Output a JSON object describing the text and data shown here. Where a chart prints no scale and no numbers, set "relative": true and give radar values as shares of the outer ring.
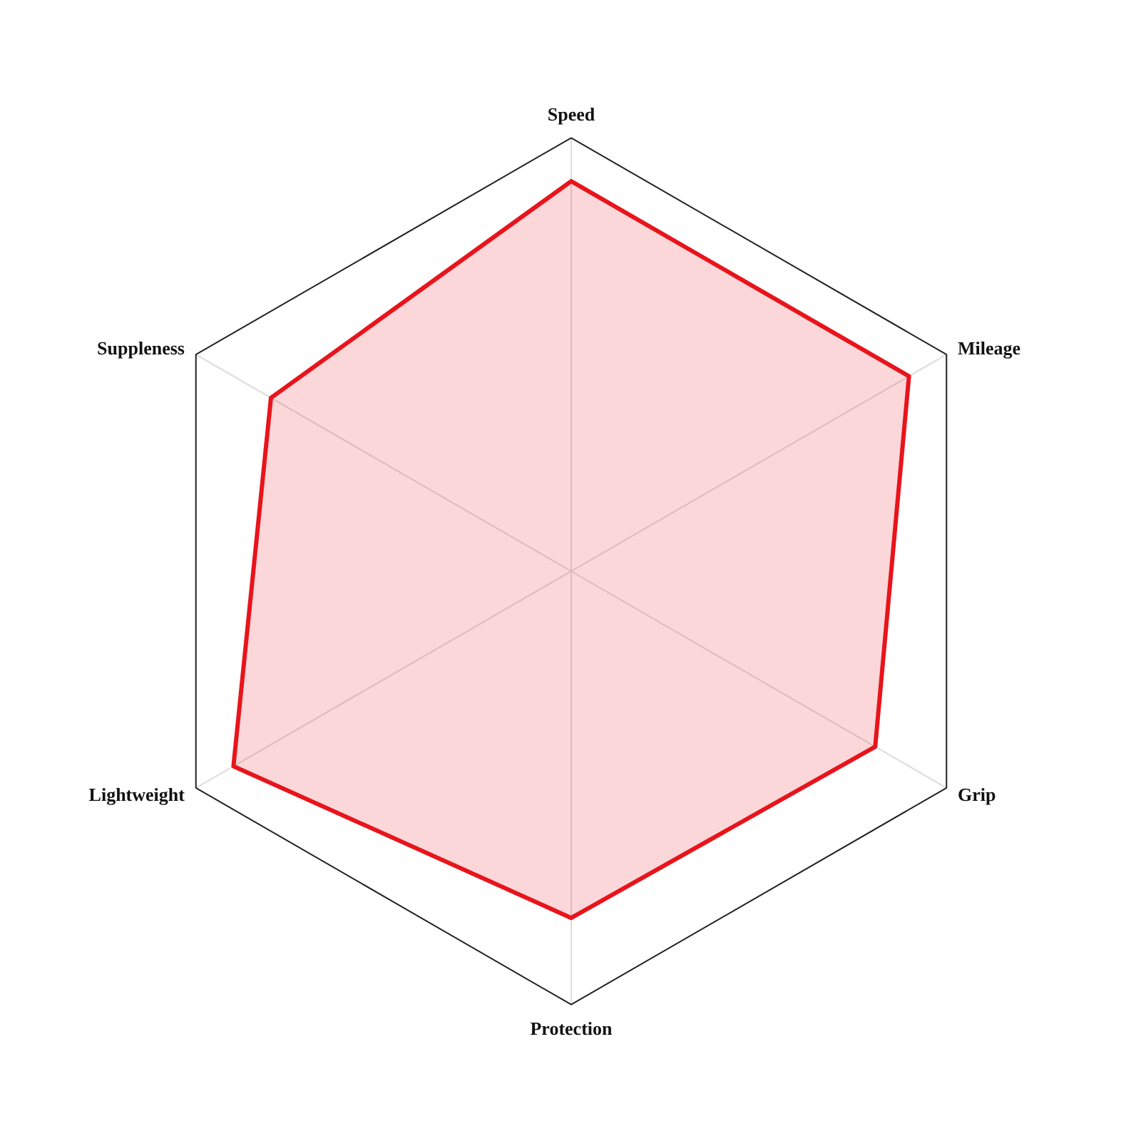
{
  "chart_data": {
    "type": "radar",
    "relative": true,
    "categories": [
      "Speed",
      "Mileage",
      "Grip",
      "Protection",
      "Lightweight",
      "Suppleness"
    ],
    "series": [
      {
        "color": "#e8141c",
        "values": [
          0.9,
          0.9,
          0.81,
          0.8,
          0.9,
          0.8
        ]
      }
    ]
  }
}
